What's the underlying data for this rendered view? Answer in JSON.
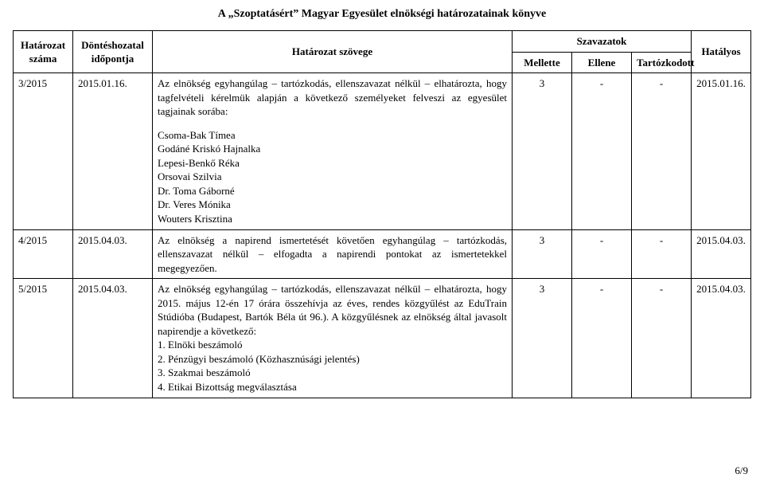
{
  "title": "A „Szoptatásért” Magyar Egyesület elnökségi határozatainak könyve",
  "footer": "6/9",
  "header": {
    "resolution_no": "Határozat száma",
    "decision_date": "Döntéshozatal időpontja",
    "resolution_text": "Határozat szövege",
    "votes": "Szavazatok",
    "vote_for": "Mellette",
    "vote_against": "Ellene",
    "vote_abstain": "Tartózkodott",
    "effective": "Hatályos"
  },
  "rows": [
    {
      "no": "3/2015",
      "date": "2015.01.16.",
      "text": "Az elnökség egyhangúlag – tartózkodás, ellenszavazat nélkül – elhatározta, hogy tagfelvételi kérelmük alapján a következő személyeket felveszi az egyesület tagjainak sorába:",
      "names": "Csoma-Bak Tímea\nGodáné Kriskó Hajnalka\nLepesi-Benkő Réka\nOrsovai Szilvia\nDr. Toma Gáborné\nDr. Veres Mónika\nWouters Krisztina",
      "for": "3",
      "against": "-",
      "abstain": "-",
      "effective": "2015.01.16."
    },
    {
      "no": "4/2015",
      "date": "2015.04.03.",
      "text": "Az elnökség a napirend ismertetését követően egyhangúlag – tartózkodás, ellenszavazat nélkül – elfogadta a napirendi pontokat az ismertetekkel megegyezően.",
      "for": "3",
      "against": "-",
      "abstain": "-",
      "effective": "2015.04.03."
    },
    {
      "no": "5/2015",
      "date": "2015.04.03.",
      "text": "Az elnökség egyhangúlag – tartózkodás, ellenszavazat nélkül – elhatározta, hogy 2015. május 12-én 17 órára összehívja az éves, rendes közgyűlést az EduTrain Stúdióba (Budapest, Bartók Béla út 96.). A közgyűlésnek az elnökség által javasolt napirendje a következő:\n1. Elnöki beszámoló\n2. Pénzügyi beszámoló (Közhasznúsági jelentés)\n3. Szakmai beszámoló\n4. Etikai Bizottság megválasztása",
      "for": "3",
      "against": "-",
      "abstain": "-",
      "effective": "2015.04.03."
    }
  ]
}
